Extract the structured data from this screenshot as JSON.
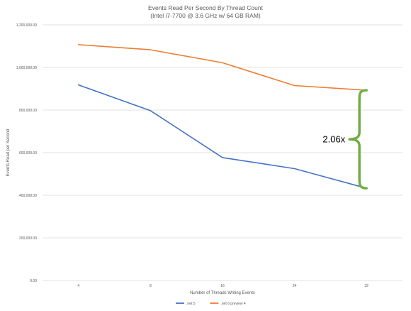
{
  "chart_data": {
    "type": "line",
    "title": "Events Read Per Second By Thread Count",
    "subtitle": "(Intel i7-7700 @ 3.6 GHz w/ 64 GB RAM)",
    "xlabel": "Number of Threads Writing Events",
    "ylabel": "Events Read per Second",
    "categories": [
      "4",
      "8",
      "16",
      "24",
      "32"
    ],
    "ylim": [
      0,
      1200000
    ],
    "yticks": [
      0,
      200000,
      400000,
      600000,
      800000,
      1000000,
      1200000
    ],
    "ytick_labels": [
      "0.00",
      "200,000.00",
      "400,000.00",
      "600,000.00",
      "800,000.00",
      "1,000,000.00",
      "1,200,000.00"
    ],
    "grid": true,
    "legend_position": "bottom",
    "series": [
      {
        "name": ".net 5",
        "color": "#4472C4",
        "values": [
          918000,
          797000,
          577000,
          525000,
          433000
        ]
      },
      {
        "name": ".net 6 preview 4",
        "color": "#ED7D31",
        "values": [
          1107000,
          1083000,
          1022000,
          915000,
          893000
        ]
      }
    ],
    "annotation": {
      "text": "2.06x",
      "color": "#70AD47",
      "category": "32",
      "from_value": 433000,
      "to_value": 893000
    }
  }
}
